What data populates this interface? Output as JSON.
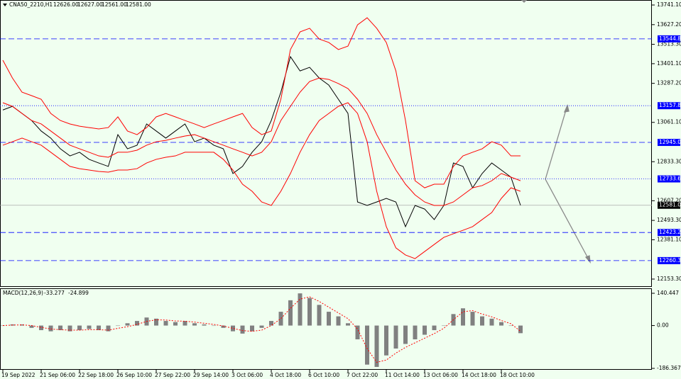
{
  "chart_data": [
    {
      "type": "line",
      "title": "CNA50_2210,H1",
      "header_values": [
        {
          "value": 12626,
          "label": "12626.00"
        },
        {
          "value": 12627,
          "label": "12627.00"
        },
        {
          "value": 12561,
          "label": "12561.00"
        },
        {
          "value": 12581,
          "label": "12581.00"
        }
      ],
      "categories": [
        "19 Sep 2022",
        null,
        null,
        null,
        "21 Sep 06:00",
        null,
        null,
        null,
        "22 Sep 18:00",
        null,
        null,
        null,
        "26 Sep 10:00",
        null,
        null,
        null,
        "27 Sep 22:00",
        null,
        null,
        null,
        "29 Sep 14:00",
        null,
        null,
        null,
        "3 Oct 06:00",
        null,
        null,
        null,
        "4 Oct 18:00",
        null,
        null,
        null,
        "6 Oct 10:00",
        null,
        null,
        null,
        "7 Oct 22:00",
        null,
        null,
        null,
        "11 Oct 14:00",
        null,
        null,
        null,
        "13 Oct 06:00",
        null,
        null,
        null,
        "14 Oct 18:00",
        null,
        null,
        null,
        "18 Oct 10:00",
        null,
        null
      ],
      "series": [
        {
          "color": "#000000",
          "values": [
            13133,
            13154,
            13113,
            13072,
            13011,
            12970,
            12908,
            12867,
            12888,
            12847,
            12826,
            12806,
            12990,
            12908,
            12929,
            13052,
            13011,
            12970,
            13011,
            13052,
            12949,
            12970,
            12929,
            12908,
            12765,
            12806,
            12888,
            12949,
            13072,
            13236,
            13442,
            13359,
            13380,
            13318,
            13277,
            13195,
            13113,
            12600,
            12580,
            12600,
            12621,
            12600,
            12457,
            12580,
            12559,
            12498,
            12580,
            12826,
            12806,
            12682,
            12765,
            12826,
            12785,
            12744,
            12581
          ]
        },
        {
          "color": "#ff0000",
          "values": [
            13421,
            13318,
            13236,
            13216,
            13195,
            13113,
            13072,
            13052,
            13039,
            13031,
            13023,
            13031,
            13093,
            13011,
            12990,
            13031,
            13093,
            13113,
            13093,
            13072,
            13052,
            13031,
            13052,
            13072,
            13093,
            13113,
            13031,
            12990,
            13011,
            13195,
            13483,
            13585,
            13606,
            13544,
            13524,
            13483,
            13503,
            13626,
            13667,
            13606,
            13524,
            13359,
            13072,
            12723,
            12682,
            12703,
            12703,
            12806,
            12867,
            12888,
            12908,
            12949,
            12929,
            12867,
            12867
          ]
        },
        {
          "color": "#ff0000",
          "values": [
            13175,
            13154,
            13113,
            13072,
            13052,
            13011,
            12970,
            12929,
            12908,
            12888,
            12867,
            12859,
            12888,
            12888,
            12900,
            12929,
            12949,
            12957,
            12970,
            12982,
            12990,
            12970,
            12949,
            12929,
            12908,
            12888,
            12867,
            12888,
            12949,
            13072,
            13154,
            13236,
            13298,
            13318,
            13310,
            13286,
            13257,
            13195,
            13113,
            12990,
            12888,
            12785,
            12703,
            12641,
            12600,
            12580,
            12580,
            12600,
            12641,
            12682,
            12695,
            12723,
            12765,
            12744,
            12723
          ]
        },
        {
          "color": "#ff0000",
          "values": [
            12929,
            12949,
            12970,
            12949,
            12929,
            12888,
            12847,
            12806,
            12793,
            12785,
            12777,
            12773,
            12785,
            12785,
            12793,
            12826,
            12847,
            12859,
            12867,
            12888,
            12888,
            12888,
            12888,
            12847,
            12785,
            12703,
            12662,
            12600,
            12580,
            12662,
            12765,
            12888,
            12990,
            13072,
            13113,
            13154,
            13175,
            13113,
            12949,
            12662,
            12457,
            12334,
            12293,
            12272,
            12313,
            12354,
            12395,
            12416,
            12436,
            12457,
            12498,
            12539,
            12621,
            12682,
            12662
          ]
        }
      ],
      "ylim": [
        12108,
        13770
      ],
      "yticks": [
        {
          "value": 13741.1,
          "label": "13741.10"
        },
        {
          "value": 13627.2,
          "label": "13627.20"
        },
        {
          "value": 13513.3,
          "label": "13513.30"
        },
        {
          "value": 13401.1,
          "label": "13401.10"
        },
        {
          "value": 13287.2,
          "label": "13287.20"
        },
        {
          "value": 13061.1,
          "label": "13061.10"
        },
        {
          "value": 12833.3,
          "label": "12833.30"
        },
        {
          "value": 12607.2,
          "label": "12607.20"
        },
        {
          "value": 12493.3,
          "label": "12493.30"
        },
        {
          "value": 12381.1,
          "label": "12381.10"
        },
        {
          "value": 12153.3,
          "label": "12153.30"
        }
      ],
      "levels": [
        {
          "value": 13544.84,
          "label": "13544.84",
          "style": "dashed",
          "color": "#0000ff"
        },
        {
          "value": 13157.84,
          "label": "13157.84",
          "style": "dotted",
          "color": "#0000ff"
        },
        {
          "value": 12945.04,
          "label": "12945.04",
          "style": "dashed",
          "color": "#0000ff"
        },
        {
          "value": 12733.68,
          "label": "12733.68",
          "style": "dotted",
          "color": "#0000ff"
        },
        {
          "value": 12581,
          "label": "12581.00",
          "style": "solid",
          "color": "#000000"
        },
        {
          "value": 12423.2,
          "label": "12423.20",
          "style": "dashed",
          "color": "#0000ff"
        },
        {
          "value": 12260.31,
          "label": "12260.31",
          "style": "dashed",
          "color": "#0000ff"
        }
      ]
    },
    {
      "type": "bar",
      "title": "MACD(12,26,9)",
      "title_values": [
        -33.277,
        -24.899
      ],
      "color": "#808080",
      "values": [
        0,
        5,
        5,
        -10,
        -20,
        -25,
        -20,
        -25,
        -20,
        -15,
        -20,
        -25,
        0,
        10,
        20,
        35,
        30,
        20,
        15,
        20,
        10,
        5,
        0,
        -10,
        -25,
        -35,
        -25,
        -10,
        20,
        60,
        110,
        140,
        120,
        90,
        60,
        40,
        10,
        -60,
        -170,
        -180,
        -130,
        -100,
        -80,
        -60,
        -40,
        -20,
        0,
        50,
        75,
        60,
        40,
        30,
        15,
        0,
        -33.277
      ],
      "signal": {
        "color": "#ff0000",
        "values": [
          0,
          2,
          3,
          0,
          -8,
          -15,
          -18,
          -20,
          -20,
          -18,
          -18,
          -20,
          -12,
          -5,
          5,
          18,
          25,
          24,
          20,
          19,
          15,
          10,
          5,
          -2,
          -12,
          -22,
          -25,
          -20,
          0,
          30,
          75,
          115,
          125,
          105,
          80,
          55,
          30,
          -15,
          -100,
          -160,
          -150,
          -120,
          -95,
          -75,
          -55,
          -35,
          -12,
          25,
          60,
          65,
          50,
          38,
          22,
          8,
          -24.899
        ]
      },
      "ylim": [
        -192.5,
        158.9
      ],
      "yticks": [
        140.447,
        {
          "value": 0,
          "label": "0.00"
        },
        -186.367
      ]
    }
  ]
}
